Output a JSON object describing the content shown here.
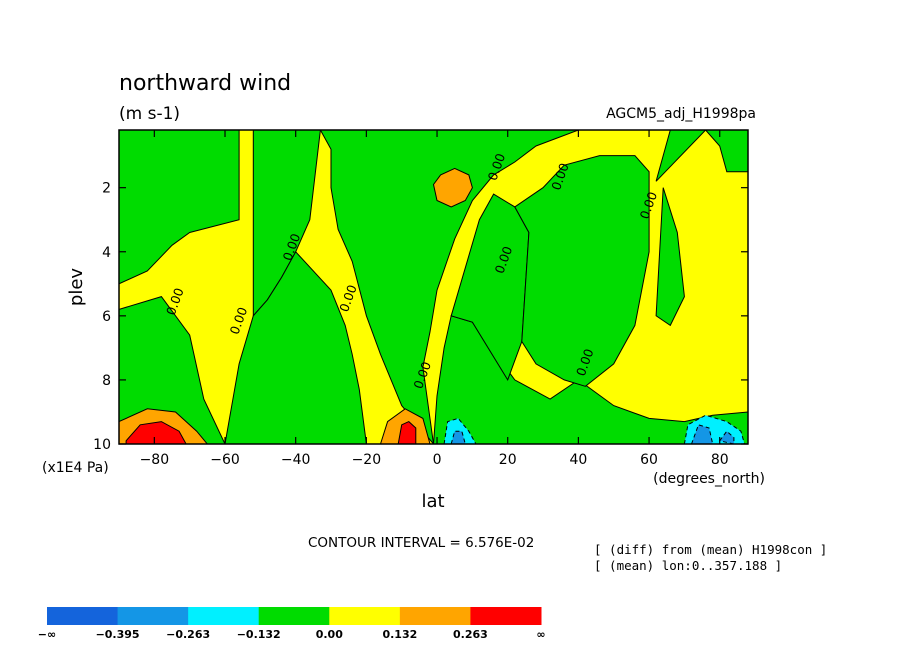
{
  "chart_data": {
    "type": "heatmap",
    "title": "northward wind",
    "units": "(m s-1)",
    "dataset": "AGCM5_adj_H1998pa",
    "xlabel": "lat",
    "x_units": "(degrees_north)",
    "ylabel": "plev",
    "y_units": "(x1E4 Pa)",
    "xlim": [
      -90,
      88
    ],
    "ylim": [
      10,
      0.2
    ],
    "x_ticks": [
      -80,
      -60,
      -40,
      -20,
      0,
      20,
      40,
      60,
      80
    ],
    "x_tick_labels": [
      "−80",
      "−60",
      "−40",
      "−20",
      "0",
      "20",
      "40",
      "60",
      "80"
    ],
    "y_ticks": [
      2,
      4,
      6,
      8,
      10
    ],
    "y_tick_labels": [
      "2",
      "4",
      "6",
      "8",
      "10"
    ],
    "contour_interval": "CONTOUR INTERVAL = 6.576E-02",
    "info_lines": [
      "[ (diff) from (mean) H1998con ]",
      "[ (mean) lon:0..357.188 ]"
    ],
    "contour_label": "0.00",
    "contour_label_positions": [
      {
        "lat": -73,
        "plev": 5.6
      },
      {
        "lat": -55,
        "plev": 6.2
      },
      {
        "lat": -40,
        "plev": 3.9
      },
      {
        "lat": -24,
        "plev": 5.5
      },
      {
        "lat": -3,
        "plev": 7.9
      },
      {
        "lat": 18,
        "plev": 1.4
      },
      {
        "lat": 20,
        "plev": 4.3
      },
      {
        "lat": 36,
        "plev": 1.7
      },
      {
        "lat": 43,
        "plev": 7.5
      },
      {
        "lat": 61,
        "plev": 2.6
      }
    ],
    "levels": [
      {
        "label": "−∞",
        "color": "#1464dc"
      },
      {
        "label": "−0.395",
        "color": "#1496e6"
      },
      {
        "label": "−0.263",
        "color": "#00f0ff"
      },
      {
        "label": "−0.132",
        "color": "#00dc00"
      },
      {
        "label": "0.00",
        "color": "#ffff00"
      },
      {
        "label": "0.132",
        "color": "#ffa500"
      },
      {
        "label": "0.263",
        "color": "#ff0000"
      },
      {
        "label": "∞",
        "color": ""
      }
    ],
    "regions": [
      {
        "level": 4,
        "pts": [
          [
            -90,
            0.2
          ],
          [
            88,
            0.2
          ],
          [
            88,
            10
          ],
          [
            -90,
            10
          ]
        ]
      },
      {
        "level": 3,
        "pts": [
          [
            -90,
            0.2
          ],
          [
            -56,
            0.2
          ],
          [
            -56,
            3.0
          ],
          [
            -70,
            3.4
          ],
          [
            -75,
            3.8
          ],
          [
            -82,
            4.6
          ],
          [
            -90,
            5.0
          ]
        ]
      },
      {
        "level": 3,
        "pts": [
          [
            -52,
            0.2
          ],
          [
            -33,
            0.2
          ],
          [
            -36,
            3.0
          ],
          [
            -40,
            4.0
          ],
          [
            -44,
            4.8
          ],
          [
            -48,
            5.5
          ],
          [
            -52,
            6.0
          ]
        ]
      },
      {
        "level": 3,
        "pts": [
          [
            -90,
            5.8
          ],
          [
            -78,
            5.4
          ],
          [
            -70,
            6.6
          ],
          [
            -66,
            8.6
          ],
          [
            -60,
            10
          ],
          [
            -90,
            10
          ]
        ]
      },
      {
        "level": 3,
        "pts": [
          [
            -60,
            10
          ],
          [
            -56,
            7.5
          ],
          [
            -52,
            6.0
          ],
          [
            -48,
            5.5
          ],
          [
            -44,
            4.8
          ],
          [
            -40,
            4.0
          ],
          [
            -30,
            5.2
          ],
          [
            -26,
            6.3
          ],
          [
            -24,
            7.2
          ],
          [
            -22,
            8.3
          ],
          [
            -20,
            10
          ]
        ]
      },
      {
        "level": 3,
        "pts": [
          [
            -33,
            0.2
          ],
          [
            40,
            0.2
          ],
          [
            28,
            0.7
          ],
          [
            22,
            1.2
          ],
          [
            16,
            1.6
          ],
          [
            10,
            2.4
          ],
          [
            5,
            3.6
          ],
          [
            0,
            5.2
          ],
          [
            -2,
            6.5
          ],
          [
            -4,
            7.6
          ],
          [
            -1,
            10
          ],
          [
            -10,
            8.8
          ],
          [
            -16,
            7.2
          ],
          [
            -20,
            6.0
          ],
          [
            -24,
            4.3
          ],
          [
            -28,
            3.3
          ],
          [
            -30,
            2.0
          ],
          [
            -30,
            0.8
          ]
        ]
      },
      {
        "level": 3,
        "pts": [
          [
            -1,
            10
          ],
          [
            0,
            8.5
          ],
          [
            2,
            7.0
          ],
          [
            4,
            6.0
          ],
          [
            10,
            6.2
          ],
          [
            22,
            8.0
          ],
          [
            32,
            8.6
          ],
          [
            40,
            8.0
          ],
          [
            50,
            8.8
          ],
          [
            60,
            9.2
          ],
          [
            70,
            9.3
          ],
          [
            78,
            9.1
          ],
          [
            88,
            9.0
          ],
          [
            88,
            10
          ]
        ]
      },
      {
        "level": 3,
        "pts": [
          [
            4,
            6.0
          ],
          [
            8,
            4.5
          ],
          [
            12,
            3.0
          ],
          [
            16,
            2.2
          ],
          [
            22,
            2.6
          ],
          [
            26,
            3.4
          ],
          [
            24,
            6.8
          ],
          [
            20,
            8.0
          ],
          [
            10,
            6.2
          ]
        ]
      },
      {
        "level": 3,
        "pts": [
          [
            22,
            2.6
          ],
          [
            30,
            2.0
          ],
          [
            36,
            1.3
          ],
          [
            46,
            1.0
          ],
          [
            56,
            1.0
          ],
          [
            60,
            1.5
          ],
          [
            60,
            4.0
          ],
          [
            56,
            6.3
          ],
          [
            50,
            7.5
          ],
          [
            42,
            8.2
          ],
          [
            36,
            8.0
          ],
          [
            28,
            7.5
          ],
          [
            24,
            6.8
          ],
          [
            26,
            3.4
          ]
        ]
      },
      {
        "level": 3,
        "pts": [
          [
            62,
            1.8
          ],
          [
            66,
            0.2
          ],
          [
            76,
            0.2
          ],
          [
            80,
            0.7
          ],
          [
            82,
            1.5
          ],
          [
            88,
            1.5
          ],
          [
            88,
            0.2
          ],
          [
            76,
            0.2
          ]
        ]
      },
      {
        "level": 3,
        "pts": [
          [
            64,
            2.0
          ],
          [
            68,
            3.4
          ],
          [
            70,
            5.4
          ],
          [
            66,
            6.3
          ],
          [
            62,
            6.0
          ]
        ]
      },
      {
        "level": 5,
        "pts": [
          [
            -90,
            9.3
          ],
          [
            -82,
            8.9
          ],
          [
            -74,
            9.0
          ],
          [
            -68,
            9.6
          ],
          [
            -65,
            10
          ],
          [
            -90,
            10
          ]
        ]
      },
      {
        "level": 6,
        "pts": [
          [
            -88,
            9.9
          ],
          [
            -84,
            9.4
          ],
          [
            -78,
            9.3
          ],
          [
            -73,
            9.6
          ],
          [
            -71,
            10
          ],
          [
            -88,
            10
          ]
        ]
      },
      {
        "level": 5,
        "pts": [
          [
            -16,
            10
          ],
          [
            -14,
            9.3
          ],
          [
            -9,
            8.9
          ],
          [
            -4,
            9.2
          ],
          [
            -2,
            10
          ]
        ]
      },
      {
        "level": 6,
        "pts": [
          [
            -11,
            10
          ],
          [
            -10,
            9.4
          ],
          [
            -8,
            9.3
          ],
          [
            -6,
            9.5
          ],
          [
            -6,
            10
          ]
        ]
      },
      {
        "level": 5,
        "pts": [
          [
            -1,
            1.9
          ],
          [
            1,
            1.6
          ],
          [
            5,
            1.4
          ],
          [
            9,
            1.6
          ],
          [
            10,
            2.0
          ],
          [
            8,
            2.4
          ],
          [
            4,
            2.6
          ],
          [
            0,
            2.4
          ]
        ]
      },
      {
        "level": 2,
        "pts": [
          [
            2,
            10
          ],
          [
            3,
            9.3
          ],
          [
            6,
            9.2
          ],
          [
            9,
            9.6
          ],
          [
            11,
            10
          ]
        ]
      },
      {
        "level": 1,
        "pts": [
          [
            4,
            10
          ],
          [
            5,
            9.6
          ],
          [
            7,
            9.6
          ],
          [
            8,
            10
          ]
        ]
      },
      {
        "level": 2,
        "pts": [
          [
            70,
            10
          ],
          [
            71,
            9.4
          ],
          [
            76,
            9.1
          ],
          [
            82,
            9.3
          ],
          [
            86,
            9.6
          ],
          [
            87,
            10
          ]
        ]
      },
      {
        "level": 1,
        "pts": [
          [
            72,
            10
          ],
          [
            74,
            9.4
          ],
          [
            77,
            9.5
          ],
          [
            78,
            10
          ]
        ]
      },
      {
        "level": 1,
        "pts": [
          [
            80,
            9.9
          ],
          [
            82,
            9.6
          ],
          [
            84,
            9.8
          ],
          [
            84,
            10
          ]
        ]
      }
    ]
  }
}
